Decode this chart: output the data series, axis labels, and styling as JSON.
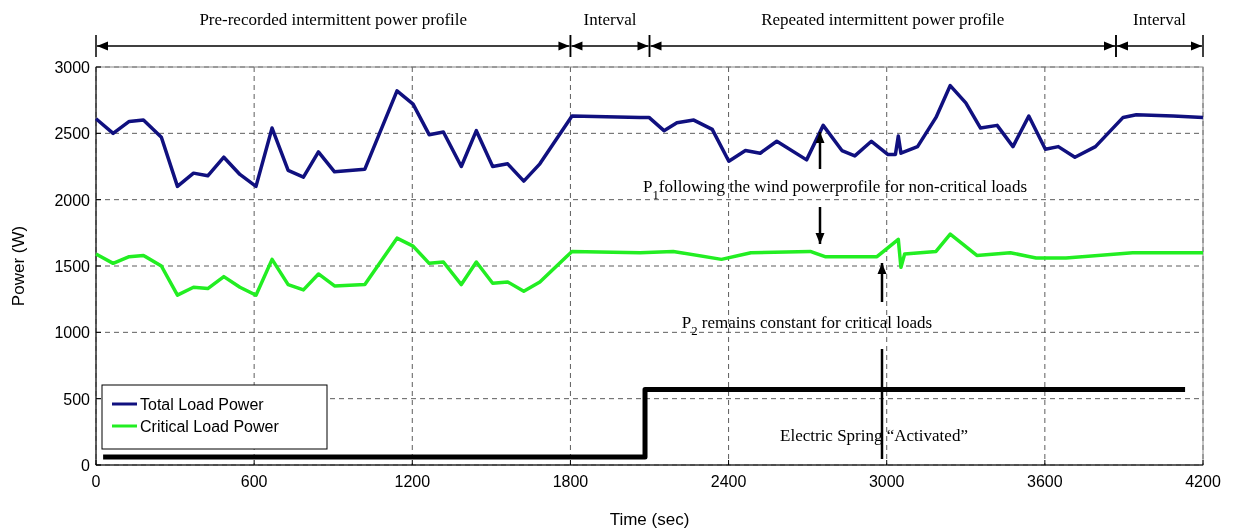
{
  "chart_data": {
    "type": "line",
    "xlabel": "Time (sec)",
    "ylabel": "Power (W)",
    "xlim": [
      0,
      4200
    ],
    "xticks": [
      0,
      600,
      1200,
      1800,
      2400,
      3000,
      3600,
      4200
    ],
    "ylim": [
      0,
      3000
    ],
    "yticks": [
      0,
      500,
      1000,
      1500,
      2000,
      2500,
      3000
    ],
    "grid": true,
    "legend": "bottom left",
    "series": [
      {
        "name": "Total Load Power",
        "color": "#10107f",
        "x": [
          0,
          65,
          126,
          180,
          248,
          309,
          370,
          424,
          485,
          546,
          607,
          668,
          729,
          787,
          844,
          905,
          1020,
          1142,
          1203,
          1264,
          1318,
          1386,
          1443,
          1505,
          1562,
          1623,
          1684,
          1806,
          2064,
          2098,
          2155,
          2204,
          2268,
          2338,
          2401,
          2464,
          2520,
          2583,
          2696,
          2759,
          2830,
          2879,
          2942,
          3005,
          3033,
          3044,
          3054,
          3117,
          3187,
          3241,
          3300,
          3356,
          3419,
          3479,
          3539,
          3602,
          3651,
          3714,
          3792,
          3897,
          3947,
          4087,
          4200
        ],
        "values": [
          2610,
          2500,
          2590,
          2600,
          2470,
          2100,
          2200,
          2180,
          2320,
          2190,
          2100,
          2540,
          2220,
          2170,
          2360,
          2210,
          2230,
          2820,
          2720,
          2490,
          2510,
          2250,
          2520,
          2250,
          2270,
          2140,
          2270,
          2630,
          2620,
          2620,
          2520,
          2580,
          2600,
          2530,
          2290,
          2370,
          2350,
          2440,
          2300,
          2560,
          2370,
          2330,
          2440,
          2340,
          2340,
          2480,
          2350,
          2400,
          2620,
          2860,
          2730,
          2540,
          2560,
          2400,
          2630,
          2380,
          2400,
          2320,
          2400,
          2620,
          2640,
          2630,
          2620
        ]
      },
      {
        "name": "Critical Load Power",
        "color": "#22ee22",
        "x": [
          0,
          65,
          126,
          180,
          248,
          309,
          370,
          424,
          485,
          546,
          607,
          668,
          729,
          787,
          844,
          905,
          1020,
          1142,
          1203,
          1264,
          1318,
          1386,
          1443,
          1505,
          1562,
          1623,
          1684,
          1806,
          2064,
          2190,
          2373,
          2485,
          2710,
          2766,
          2963,
          3044,
          3054,
          3068,
          3187,
          3241,
          3342,
          3469,
          3567,
          3680,
          3933,
          4200
        ],
        "values": [
          1590,
          1520,
          1570,
          1580,
          1500,
          1280,
          1340,
          1330,
          1420,
          1340,
          1280,
          1550,
          1360,
          1320,
          1440,
          1350,
          1360,
          1710,
          1650,
          1520,
          1530,
          1360,
          1530,
          1370,
          1380,
          1310,
          1380,
          1610,
          1600,
          1610,
          1550,
          1600,
          1610,
          1570,
          1570,
          1700,
          1490,
          1590,
          1610,
          1740,
          1580,
          1600,
          1560,
          1560,
          1600,
          1600
        ]
      },
      {
        "type": "step",
        "color": "#000000",
        "x": [
          27,
          2083,
          4132
        ],
        "values": [
          60,
          570,
          570
        ]
      }
    ],
    "annotations": [
      "Pre-recorded intermittent power profile",
      "Interval",
      "Repeated intermittent power profile",
      "Interval",
      "P$_{1}$following the wind powerprofile for non-critical loads",
      "P$_{2}$ remains constant for critical loads",
      "Electric Spring “Activated”"
    ]
  }
}
